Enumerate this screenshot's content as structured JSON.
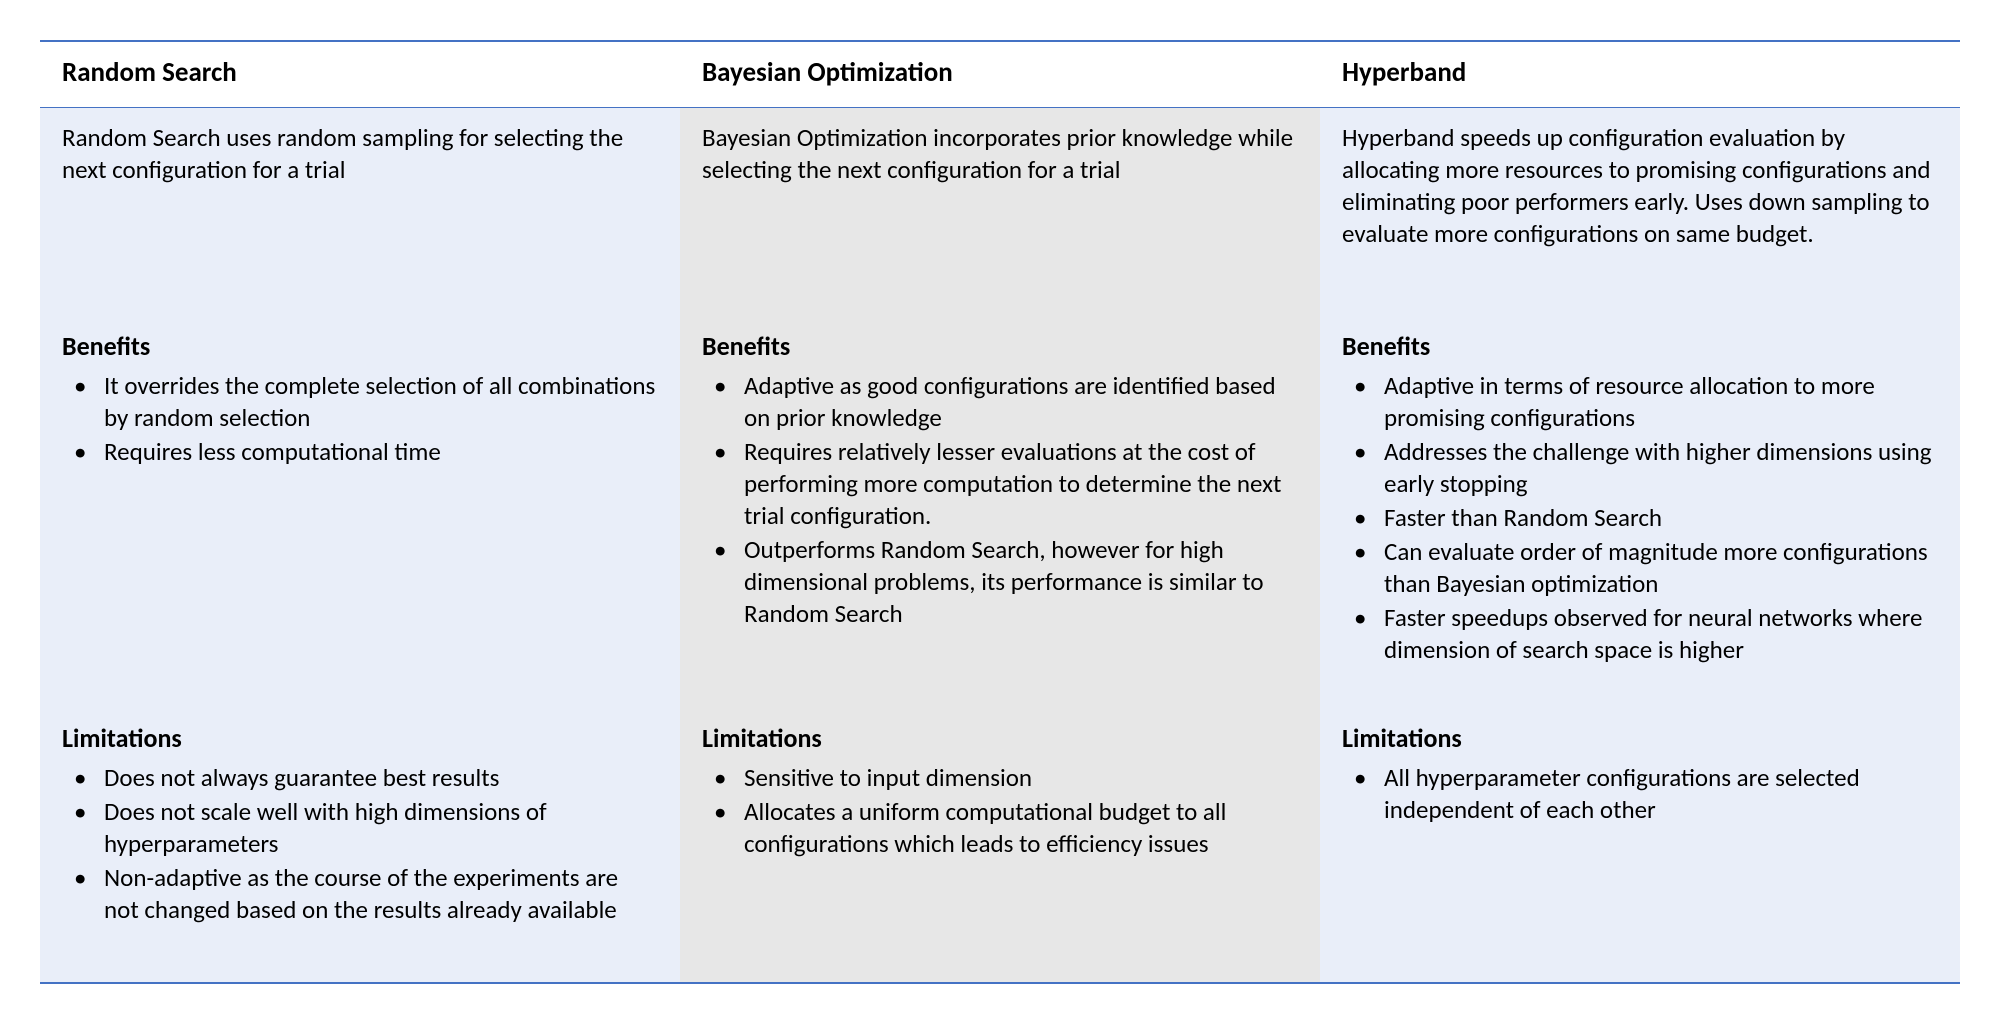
{
  "type": "table",
  "layout": {
    "columns": 3,
    "border_color": "#4472c4",
    "column_backgrounds": [
      "#e9eef9",
      "#e7e7e7",
      "#e9eef9"
    ],
    "header_background": "#ffffff",
    "text_color": "#000000",
    "header_fontsize_pt": 20,
    "body_fontsize_pt": 19,
    "font_family": "Calibri"
  },
  "columns": [
    {
      "title": "Random Search",
      "description": "Random Search uses random sampling for selecting the next configuration for a trial",
      "benefits_label": "Benefits",
      "benefits": [
        "It overrides the complete selection of all combinations by random selection",
        "Requires less computational time"
      ],
      "limitations_label": "Limitations",
      "limitations": [
        "Does not always guarantee best results",
        "Does not scale well with high dimensions of hyperparameters",
        "Non-adaptive as the course of the experiments are not changed based on the results  already available"
      ]
    },
    {
      "title": "Bayesian Optimization",
      "description": "Bayesian Optimization incorporates prior knowledge while selecting the next configuration for a trial",
      "benefits_label": "Benefits",
      "benefits": [
        "Adaptive as good configurations are identified based on prior knowledge",
        "Requires relatively lesser evaluations at the cost of performing more computation to determine the next trial configuration.",
        "Outperforms Random Search, however for high dimensional problems, its performance is similar  to Random Search"
      ],
      "limitations_label": "Limitations",
      "limitations": [
        "Sensitive to input dimension",
        "Allocates a uniform computational budget to all configurations which leads to efficiency issues"
      ]
    },
    {
      "title": "Hyperband",
      "description": "Hyperband speeds up configuration evaluation by allocating more resources to promising configurations and eliminating poor performers early. Uses down sampling  to evaluate more configurations on same budget.",
      "benefits_label": "Benefits",
      "benefits": [
        "Adaptive in terms of resource allocation to more promising configurations",
        "Addresses the challenge with higher dimensions using early stopping",
        "Faster than Random Search",
        "Can evaluate order of magnitude more configurations than Bayesian optimization",
        "Faster speedups observed for neural networks where dimension of search space is higher"
      ],
      "limitations_label": "Limitations",
      "limitations": [
        "All hyperparameter configurations are selected independent of each other"
      ]
    }
  ]
}
